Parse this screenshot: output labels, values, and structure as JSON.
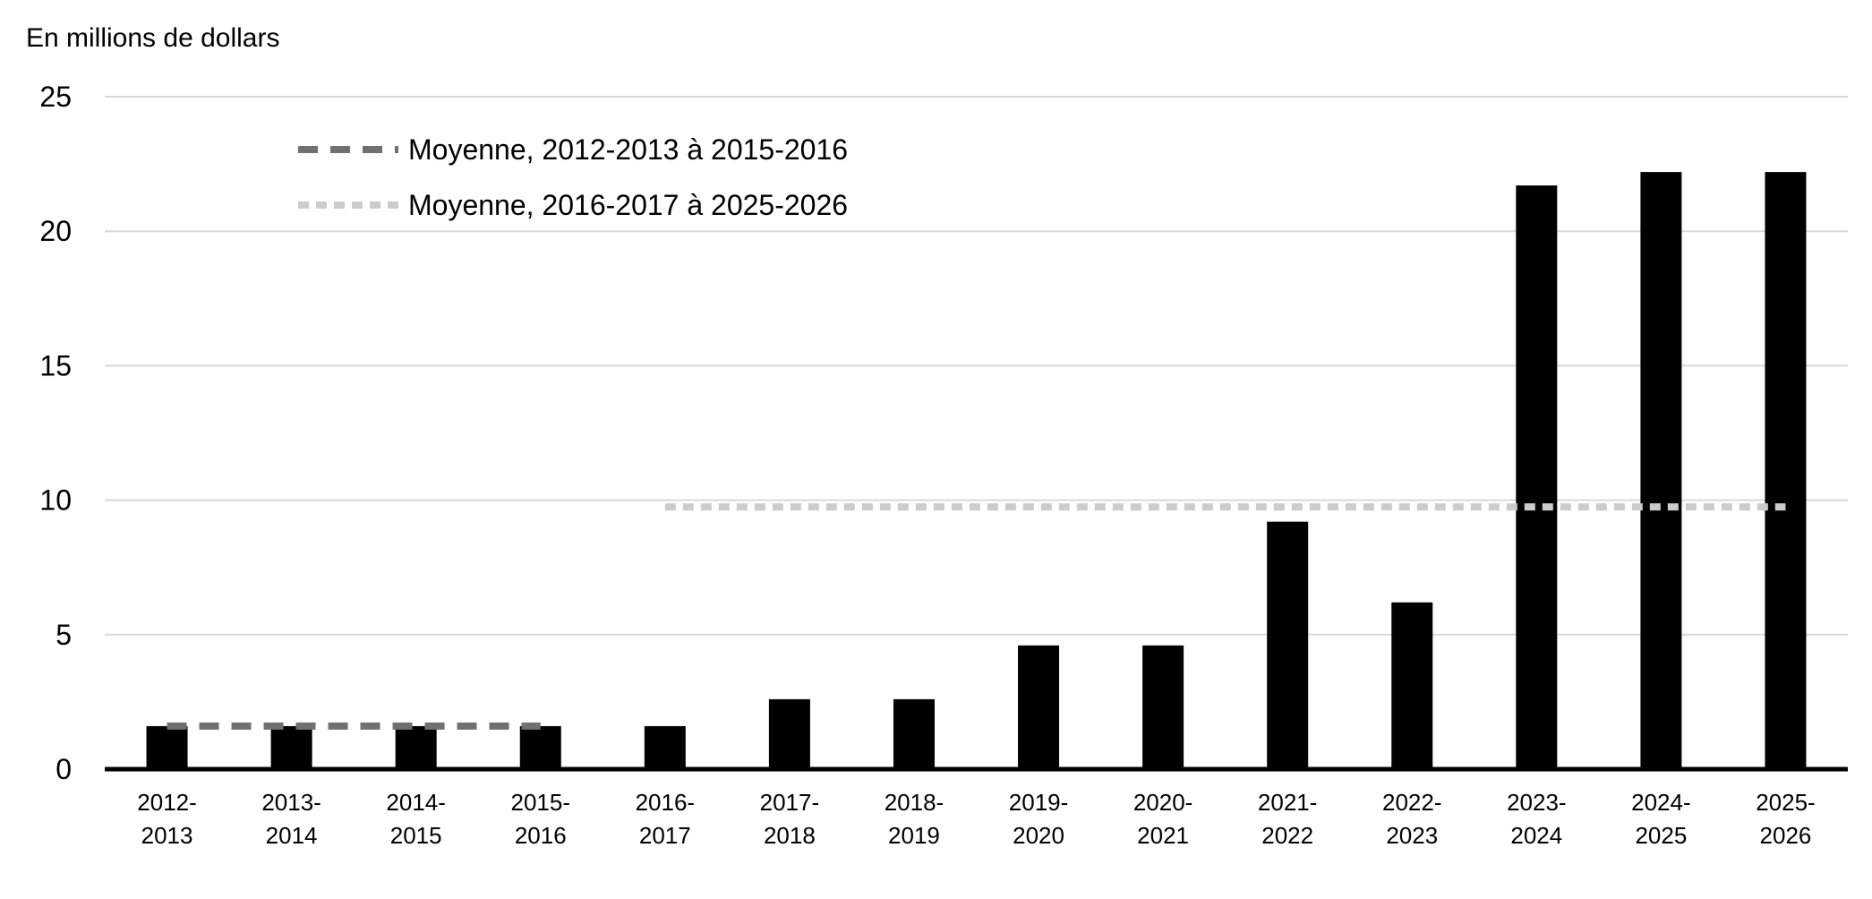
{
  "chart_data": {
    "type": "bar",
    "title": "En millions de dollars",
    "categories": [
      "2012-2013",
      "2013-2014",
      "2014-2015",
      "2015-2016",
      "2016-2017",
      "2017-2018",
      "2018-2019",
      "2019-2020",
      "2020-2021",
      "2021-2022",
      "2022-2023",
      "2023-2024",
      "2024-2025",
      "2025-2026"
    ],
    "values": [
      1.6,
      1.6,
      1.6,
      1.6,
      1.6,
      2.6,
      2.6,
      4.6,
      4.6,
      9.2,
      6.2,
      21.7,
      22.2,
      22.2
    ],
    "color": "#000000",
    "ylim": [
      0,
      25
    ],
    "yticks": [
      0,
      5,
      10,
      15,
      20,
      25
    ],
    "grid": true,
    "legend": "upper left",
    "series": [
      {
        "name": "Moyenne, 2012-2013 à 2015-2016",
        "color": "#707070",
        "dash": "long",
        "values": [
          1.6,
          1.6,
          1.6,
          1.6,
          null,
          null,
          null,
          null,
          null,
          null,
          null,
          null,
          null,
          null
        ]
      },
      {
        "name": "Moyenne, 2016-2017 à 2025-2026",
        "color": "#cccccc",
        "dash": "short",
        "values": [
          null,
          null,
          null,
          null,
          9.75,
          9.75,
          9.75,
          9.75,
          9.75,
          9.75,
          9.75,
          9.75,
          9.75,
          9.75
        ]
      }
    ]
  }
}
